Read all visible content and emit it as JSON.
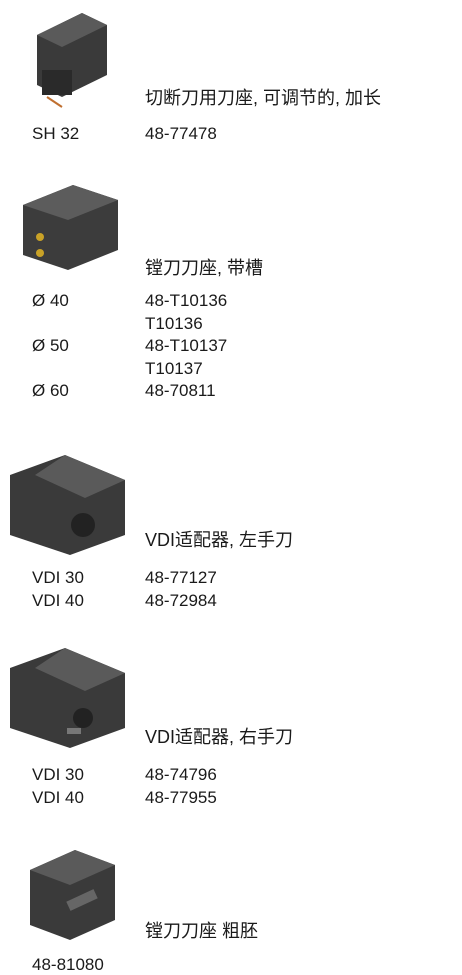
{
  "sections": [
    {
      "title": "切断刀用刀座, 可调节的, 加长",
      "rows": [
        {
          "label": "SH 32",
          "codes": [
            "48-77478"
          ]
        }
      ]
    },
    {
      "title": "镗刀刀座, 带槽",
      "rows": [
        {
          "label": "Ø 40",
          "codes": [
            "48-T10136",
            "T10136"
          ]
        },
        {
          "label": "Ø 50",
          "codes": [
            "48-T10137",
            "T10137"
          ]
        },
        {
          "label": "Ø 60",
          "codes": [
            "48-70811"
          ]
        }
      ]
    },
    {
      "title": "VDI适配器, 左手刀",
      "rows": [
        {
          "label": "VDI 30",
          "codes": [
            "48-77127"
          ]
        },
        {
          "label": "VDI 40",
          "codes": [
            "48-72984"
          ]
        }
      ]
    },
    {
      "title": "VDI适配器, 右手刀",
      "rows": [
        {
          "label": "VDI 30",
          "codes": [
            "48-74796"
          ]
        },
        {
          "label": "VDI 40",
          "codes": [
            "48-77955"
          ]
        }
      ]
    },
    {
      "title": "镗刀刀座 粗胚",
      "rows": [
        {
          "label": "48-81080"
        }
      ]
    }
  ]
}
